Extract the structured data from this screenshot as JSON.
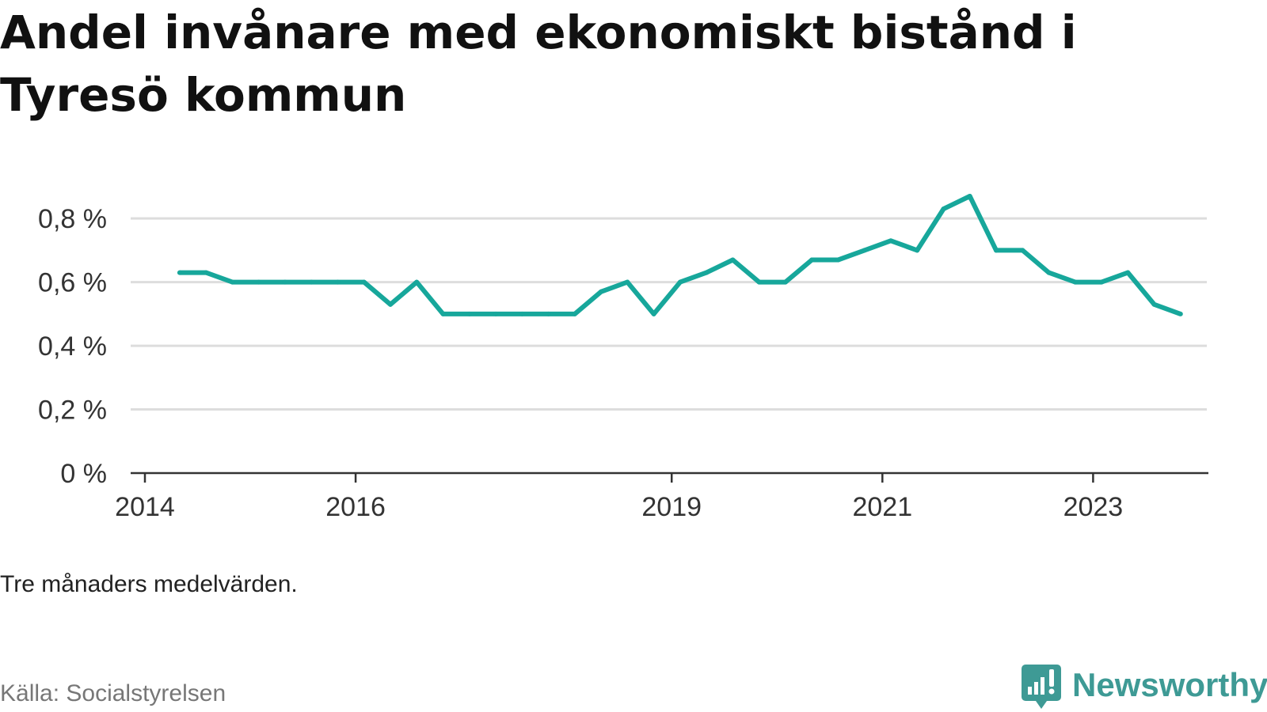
{
  "title": "Andel invånare med ekonomiskt bistånd i Tyresö kommun",
  "note": "Tre månaders medelvärden.",
  "source": "Källa: Socialstyrelsen",
  "brand": {
    "name": "Newsworthy",
    "icon": "newsworthy-logo-icon",
    "color": "#3e9a95"
  },
  "colors": {
    "line": "#17a79b",
    "grid": "#dddddd",
    "axis": "#333333"
  },
  "chart_data": {
    "type": "line",
    "title": "Andel invånare med ekonomiskt bistånd i Tyresö kommun",
    "xlabel": "",
    "ylabel": "",
    "y_tick_labels": [
      "0 %",
      "0,2 %",
      "0,4 %",
      "0,6 %",
      "0,8 %"
    ],
    "y_ticks": [
      0,
      0.2,
      0.4,
      0.6,
      0.8
    ],
    "ylim": [
      0,
      0.88
    ],
    "x_tick_labels": [
      "2014",
      "2016",
      "2019",
      "2021",
      "2023"
    ],
    "x_ticks": [
      2014.0,
      2016.0,
      2019.0,
      2021.0,
      2023.0
    ],
    "xlim": [
      2014.0,
      2024.35
    ],
    "grid": true,
    "series": [
      {
        "x": [
          2014.33,
          2014.58,
          2014.83,
          2015.08,
          2015.33,
          2015.58,
          2015.83,
          2016.08,
          2016.33,
          2016.58,
          2016.83,
          2017.08,
          2017.33,
          2017.58,
          2017.83,
          2018.08,
          2018.33,
          2018.58,
          2018.83,
          2019.08,
          2019.33,
          2019.58,
          2019.83,
          2020.08,
          2020.33,
          2020.58,
          2020.83,
          2021.08,
          2021.33,
          2021.58,
          2021.83,
          2022.08,
          2022.33,
          2022.58,
          2022.83,
          2023.08,
          2023.33,
          2023.58,
          2023.83
        ],
        "values": [
          0.63,
          0.63,
          0.6,
          0.6,
          0.6,
          0.6,
          0.6,
          0.6,
          0.53,
          0.6,
          0.5,
          0.5,
          0.5,
          0.5,
          0.5,
          0.5,
          0.57,
          0.6,
          0.5,
          0.6,
          0.63,
          0.67,
          0.6,
          0.6,
          0.67,
          0.67,
          0.7,
          0.73,
          0.7,
          0.83,
          0.87,
          0.7,
          0.7,
          0.63,
          0.6,
          0.6,
          0.63,
          0.53,
          0.5
        ]
      }
    ]
  }
}
